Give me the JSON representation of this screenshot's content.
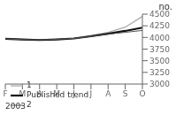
{
  "chart_data": {
    "type": "line",
    "title": "no.",
    "x_label": "2003",
    "categories": [
      "F",
      "M",
      "A",
      "M",
      "J",
      "J",
      "A",
      "S",
      "O"
    ],
    "series": [
      {
        "name": "1",
        "color": "#aaaaaa",
        "values": [
          3970,
          3955,
          3945,
          3955,
          3980,
          4040,
          4110,
          4220,
          4450
        ]
      },
      {
        "name": "Published trend",
        "color": "#111111",
        "values": [
          3970,
          3955,
          3945,
          3958,
          3978,
          4025,
          4080,
          4140,
          4210
        ]
      },
      {
        "name": "2",
        "color": "#555555",
        "values": [
          3970,
          3955,
          3948,
          3960,
          3978,
          4020,
          4070,
          4110,
          4150
        ]
      }
    ],
    "ylim": [
      3000,
      4500
    ],
    "yticks": [
      3000,
      3250,
      3500,
      3750,
      4000,
      4250,
      4500
    ],
    "grid": false,
    "legend": "lower left"
  }
}
